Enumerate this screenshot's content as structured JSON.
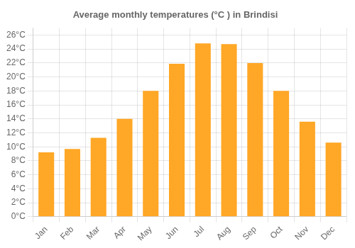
{
  "chart_data": {
    "type": "bar",
    "title": "Average monthly temperatures (°C ) in Brindisi",
    "categories": [
      "Jan",
      "Feb",
      "Mar",
      "Apr",
      "May",
      "Jun",
      "Jul",
      "Aug",
      "Sep",
      "Oct",
      "Nov",
      "Dec"
    ],
    "values": [
      9.2,
      9.7,
      11.3,
      14.0,
      18.0,
      21.9,
      24.8,
      24.7,
      22.0,
      18.0,
      13.6,
      10.6
    ],
    "color": "#FFA726",
    "ylim": [
      0,
      27
    ],
    "yticks": [
      {
        "value": 0,
        "label": "0°C"
      },
      {
        "value": 2,
        "label": "2°C"
      },
      {
        "value": 4,
        "label": "4°C"
      },
      {
        "value": 6,
        "label": "6°C"
      },
      {
        "value": 8,
        "label": "8°C"
      },
      {
        "value": 10,
        "label": "10°C"
      },
      {
        "value": 12,
        "label": "12°C"
      },
      {
        "value": 14,
        "label": "14°C"
      },
      {
        "value": 16,
        "label": "16°C"
      },
      {
        "value": 18,
        "label": "18°C"
      },
      {
        "value": 20,
        "label": "20°C"
      },
      {
        "value": 22,
        "label": "22°C"
      },
      {
        "value": 24,
        "label": "24°C"
      },
      {
        "value": 26,
        "label": "26°C"
      }
    ],
    "grid": true
  }
}
